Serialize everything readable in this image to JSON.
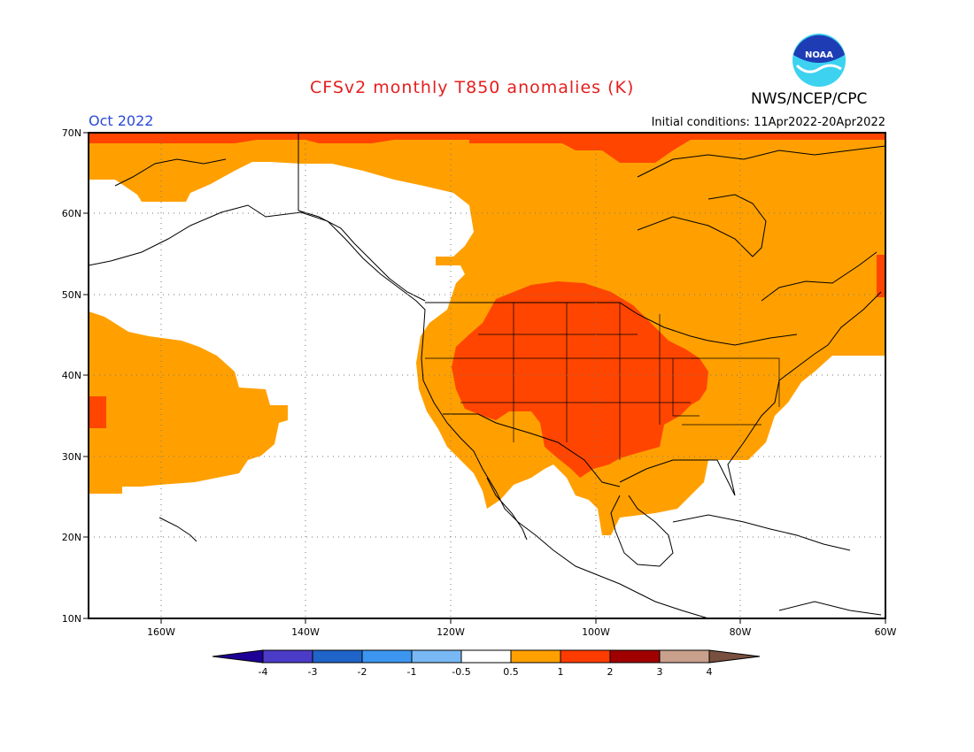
{
  "title": "CFSv2 monthly T850 anomalies (K)",
  "agency": "NWS/NCEP/CPC",
  "logo_text": "NOAA",
  "valid_month": "Oct 2022",
  "initial_conditions": "Initial conditions: 11Apr2022-20Apr2022",
  "map": {
    "lon_range": [
      -170,
      -60
    ],
    "lat_range": [
      10,
      70
    ],
    "lat_labels": [
      "70N",
      "60N",
      "50N",
      "40N",
      "30N",
      "20N",
      "10N"
    ],
    "lon_labels": [
      "160W",
      "140W",
      "120W",
      "100W",
      "80W",
      "60W"
    ]
  },
  "legend": {
    "tick_labels": [
      "-4",
      "-3",
      "-2",
      "-1",
      "-0.5",
      "0.5",
      "1",
      "2",
      "3",
      "4"
    ],
    "colors": [
      "#1e0096",
      "#4b3cc8",
      "#1f64c8",
      "#3c96f0",
      "#78b9f5",
      "#ffffff",
      "#ffa000",
      "#ff3c00",
      "#a00000",
      "#c8a08c",
      "#785040"
    ]
  },
  "anomaly_colors": {
    "0.5-1": "#ffa000",
    "1-2": "#ff4500",
    "2-3": "#a00000"
  }
}
